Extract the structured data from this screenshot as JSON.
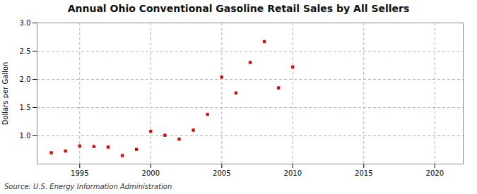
{
  "chart_data": {
    "type": "scatter",
    "title": "Annual Ohio Conventional Gasoline Retail Sales by All Sellers",
    "ylabel": "Dollars per Gallon",
    "source": "Source: U.S. Energy Information Administration",
    "x": [
      1993,
      1994,
      1995,
      1996,
      1997,
      1998,
      1999,
      2000,
      2001,
      2002,
      2003,
      2004,
      2005,
      2006,
      2007,
      2008,
      2009,
      2010
    ],
    "values": [
      0.7,
      0.73,
      0.82,
      0.81,
      0.8,
      0.65,
      0.76,
      1.08,
      1.01,
      0.94,
      1.1,
      1.38,
      2.04,
      1.76,
      2.3,
      2.67,
      1.85,
      2.22
    ],
    "color": "#cc1111",
    "marker": "square",
    "xlim": [
      1992,
      2022
    ],
    "ylim": [
      0.5,
      3.0
    ],
    "xticks": [
      1995,
      2000,
      2005,
      2010,
      2015,
      2020
    ],
    "yticks": [
      {
        "value": 1.0,
        "label": "1.0"
      },
      {
        "value": 1.5,
        "label": "1.5"
      },
      {
        "value": 2.0,
        "label": "2.0"
      },
      {
        "value": 2.5,
        "label": "2.5"
      },
      {
        "value": 3.0,
        "label": "3.0"
      }
    ],
    "grid": true
  }
}
